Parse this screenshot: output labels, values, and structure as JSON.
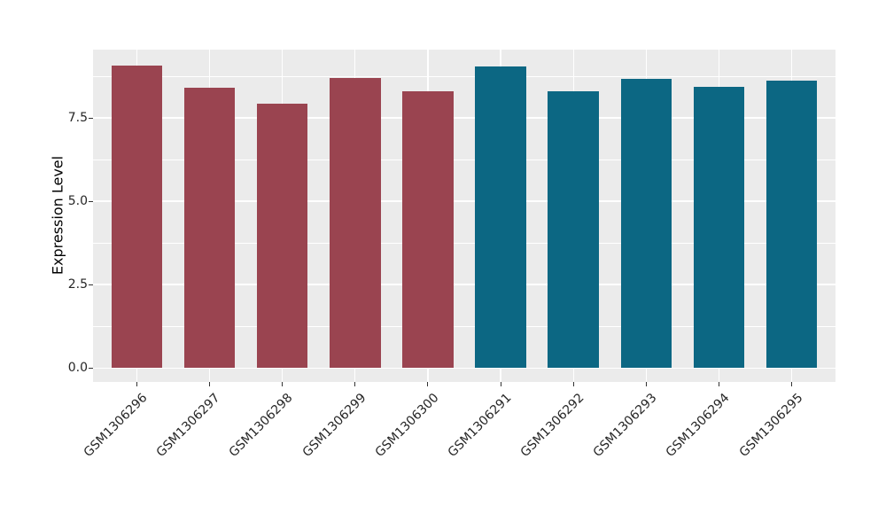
{
  "figure": {
    "background": "#ffffff",
    "panel_background": "#ebebeb",
    "grid_color": "#ffffff",
    "tick_mark_color": "#333333",
    "tick_text_color": "#262626",
    "axis_title_color": "#000000"
  },
  "chart_data": {
    "type": "bar",
    "title": "",
    "xlabel": "",
    "ylabel": "Expression Level",
    "categories": [
      "GSM1306296",
      "GSM1306297",
      "GSM1306298",
      "GSM1306299",
      "GSM1306300",
      "GSM1306291",
      "GSM1306292",
      "GSM1306293",
      "GSM1306294",
      "GSM1306295"
    ],
    "values": [
      9.08,
      8.4,
      7.92,
      8.71,
      8.3,
      9.04,
      8.3,
      8.68,
      8.43,
      8.61
    ],
    "bar_colors": [
      "#9a4450",
      "#9a4450",
      "#9a4450",
      "#9a4450",
      "#9a4450",
      "#0c6783",
      "#0c6783",
      "#0c6783",
      "#0c6783",
      "#0c6783"
    ],
    "group_colors": {
      "left_group": "#9a4450",
      "right_group": "#0c6783"
    },
    "y_ticks": [
      0.0,
      2.5,
      5.0,
      7.5
    ],
    "y_tick_labels": [
      "0.0",
      "2.5",
      "5.0",
      "7.5"
    ],
    "y_minor_ticks": [
      1.25,
      3.75,
      6.25,
      8.75
    ],
    "ylim": [
      -0.42,
      9.55
    ],
    "bar_rel_width": 0.7,
    "x_label_rotation_deg": 45,
    "grid": true,
    "legend": false
  }
}
